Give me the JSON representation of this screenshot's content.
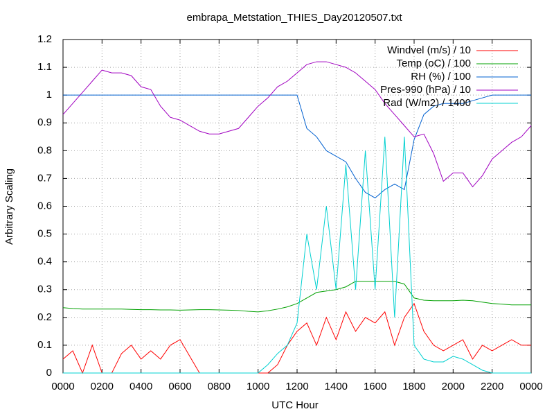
{
  "chart_data": {
    "type": "line",
    "title": "embrapa_Metstation_THIES_Day20120507.txt",
    "x_label": "UTC Hour",
    "y_label": "Arbitrary Scaling",
    "x": [
      0,
      0.5,
      1,
      1.5,
      2,
      2.5,
      3,
      3.5,
      4,
      4.5,
      5,
      5.5,
      6,
      6.5,
      7,
      7.5,
      8,
      8.5,
      9,
      9.5,
      10,
      10.5,
      11,
      11.5,
      12,
      12.5,
      13,
      13.5,
      14,
      14.5,
      15,
      15.5,
      16,
      16.5,
      17,
      17.5,
      18,
      18.5,
      19,
      19.5,
      20,
      20.5,
      21,
      21.5,
      22,
      22.5,
      23,
      23.5,
      24
    ],
    "series": [
      {
        "name": "Windvel (m/s) / 10",
        "color": "#ff0000",
        "values": [
          0.05,
          0.08,
          0,
          0.1,
          0,
          0,
          0.07,
          0.1,
          0.05,
          0.08,
          0.05,
          0.1,
          0.12,
          0.06,
          0,
          0,
          0,
          0,
          0,
          0,
          0,
          0,
          0.03,
          0.1,
          0.15,
          0.18,
          0.1,
          0.2,
          0.12,
          0.22,
          0.15,
          0.2,
          0.18,
          0.22,
          0.1,
          0.2,
          0.25,
          0.15,
          0.1,
          0.08,
          0.1,
          0.12,
          0.05,
          0.1,
          0.08,
          0.1,
          0.12,
          0.1,
          0.1
        ]
      },
      {
        "name": "Temp (oC) / 100",
        "color": "#00a000",
        "values": [
          0.235,
          0.232,
          0.23,
          0.23,
          0.23,
          0.23,
          0.23,
          0.229,
          0.228,
          0.228,
          0.227,
          0.227,
          0.226,
          0.227,
          0.228,
          0.228,
          0.227,
          0.226,
          0.225,
          0.222,
          0.22,
          0.224,
          0.23,
          0.238,
          0.25,
          0.27,
          0.29,
          0.295,
          0.3,
          0.31,
          0.33,
          0.33,
          0.33,
          0.33,
          0.33,
          0.32,
          0.27,
          0.262,
          0.26,
          0.26,
          0.26,
          0.262,
          0.26,
          0.255,
          0.25,
          0.248,
          0.245,
          0.245,
          0.245
        ]
      },
      {
        "name": "RH (%) / 100",
        "color": "#0060d0",
        "values": [
          1,
          1,
          1,
          1,
          1,
          1,
          1,
          1,
          1,
          1,
          1,
          1,
          1,
          1,
          1,
          1,
          1,
          1,
          1,
          1,
          1,
          1,
          1,
          1,
          1,
          0.88,
          0.85,
          0.8,
          0.78,
          0.76,
          0.7,
          0.65,
          0.63,
          0.66,
          0.68,
          0.66,
          0.84,
          0.93,
          0.96,
          0.97,
          0.97,
          0.97,
          0.98,
          0.99,
          1,
          1,
          1,
          1,
          1
        ]
      },
      {
        "name": "Pres-990 (hPa) / 10",
        "color": "#a000c0",
        "values": [
          0.93,
          0.97,
          1.01,
          1.05,
          1.09,
          1.08,
          1.08,
          1.07,
          1.03,
          1.02,
          0.96,
          0.92,
          0.91,
          0.89,
          0.87,
          0.86,
          0.86,
          0.87,
          0.88,
          0.92,
          0.96,
          0.99,
          1.03,
          1.05,
          1.08,
          1.11,
          1.12,
          1.12,
          1.11,
          1.1,
          1.08,
          1.05,
          1.02,
          0.97,
          0.93,
          0.89,
          0.85,
          0.86,
          0.79,
          0.69,
          0.72,
          0.72,
          0.67,
          0.71,
          0.77,
          0.8,
          0.83,
          0.85,
          0.89
        ]
      },
      {
        "name": "Rad (W/m2) / 1400",
        "color": "#00d0d0",
        "values": [
          0,
          0,
          0,
          0,
          0,
          0,
          0,
          0,
          0,
          0,
          0,
          0,
          0,
          0,
          0,
          0,
          0,
          0,
          0,
          0,
          0,
          0.03,
          0.07,
          0.1,
          0.18,
          0.5,
          0.3,
          0.6,
          0.3,
          0.75,
          0.3,
          0.8,
          0.3,
          0.85,
          0.2,
          0.85,
          0.1,
          0.05,
          0.04,
          0.04,
          0.06,
          0.05,
          0.03,
          0.01,
          0,
          0,
          0,
          0,
          0
        ]
      }
    ],
    "xlim": [
      0,
      24
    ],
    "xticks": [
      {
        "value": 0,
        "label": "0000"
      },
      {
        "value": 2,
        "label": "0200"
      },
      {
        "value": 4,
        "label": "0400"
      },
      {
        "value": 6,
        "label": "0600"
      },
      {
        "value": 8,
        "label": "0800"
      },
      {
        "value": 10,
        "label": "1000"
      },
      {
        "value": 12,
        "label": "1200"
      },
      {
        "value": 14,
        "label": "1400"
      },
      {
        "value": 16,
        "label": "1600"
      },
      {
        "value": 18,
        "label": "1800"
      },
      {
        "value": 20,
        "label": "2000"
      },
      {
        "value": 22,
        "label": "2200"
      },
      {
        "value": 24,
        "label": "0000"
      }
    ],
    "ylim": [
      0,
      1.2
    ],
    "yticks": [
      0,
      0.1,
      0.2,
      0.3,
      0.4,
      0.5,
      0.6,
      0.7,
      0.8,
      0.9,
      1,
      1.1,
      1.2
    ],
    "grid": true,
    "legend": "top-right"
  }
}
